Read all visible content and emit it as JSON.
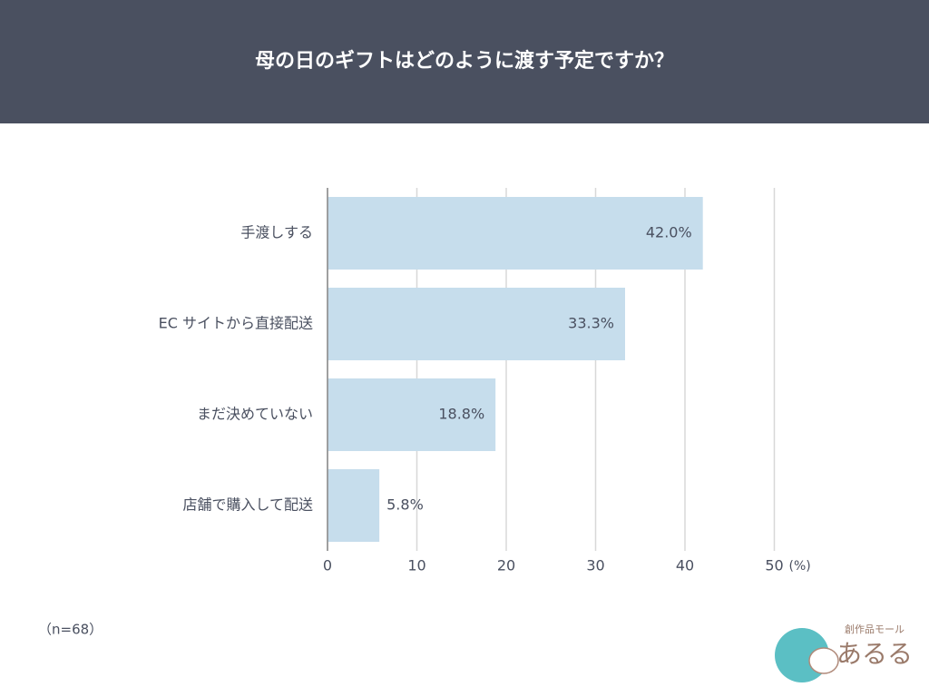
{
  "chart_data": {
    "type": "barh",
    "title": "母の日のギフトはどのように渡す予定ですか？",
    "categories": [
      "手渡しする",
      "EC サイトから直接配送",
      "まだ決めていない",
      "店舗で購入して配送"
    ],
    "values": [
      42.0,
      33.3,
      18.8,
      5.8
    ],
    "value_labels": [
      "42.0%",
      "33.3%",
      "18.8%",
      "5.8%"
    ],
    "color": "#c6ddec",
    "xlim": [
      0,
      50
    ],
    "xticks": [
      0,
      10,
      20,
      30,
      40,
      50
    ],
    "xlabel": "(%)",
    "grid": true,
    "note": "（n=68）"
  },
  "logo": {
    "tagline": "創作品モール",
    "name": "あるる"
  }
}
